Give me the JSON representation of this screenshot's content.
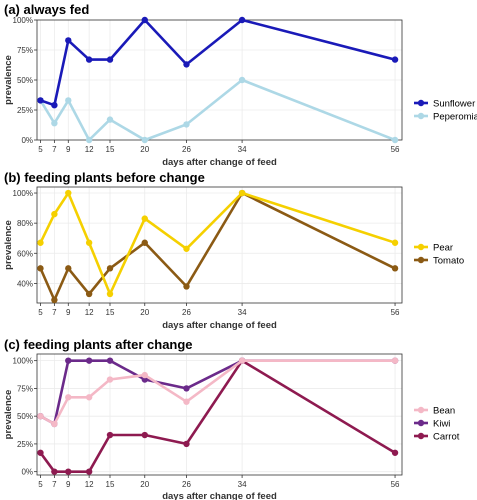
{
  "chart_data": [
    {
      "type": "line",
      "title": "(a) always fed",
      "xlabel": "days after change of feed",
      "ylabel": "prevalence",
      "x_ticks": [
        5,
        7,
        9,
        12,
        15,
        20,
        26,
        34,
        56
      ],
      "xlim": [
        4.5,
        57
      ],
      "ylim": [
        0,
        1
      ],
      "y_ticks": [
        0,
        0.25,
        0.5,
        0.75,
        1
      ],
      "y_tick_labels": [
        "0%",
        "25%",
        "50%",
        "75%",
        "100%"
      ],
      "grid": true,
      "legend_position": "right",
      "series": [
        {
          "name": "Sunflower",
          "color": "#1a1ab8",
          "points": [
            [
              5,
              0.33
            ],
            [
              7,
              0.29
            ],
            [
              9,
              0.83
            ],
            [
              12,
              0.67
            ],
            [
              15,
              0.67
            ],
            [
              20,
              1.0
            ],
            [
              26,
              0.63
            ],
            [
              34,
              1.0
            ],
            [
              56,
              0.67
            ]
          ]
        },
        {
          "name": "Peperomia",
          "color": "#add8e6",
          "points": [
            [
              5,
              0.33
            ],
            [
              7,
              0.14
            ],
            [
              9,
              0.33
            ],
            [
              12,
              0.0
            ],
            [
              15,
              0.17
            ],
            [
              20,
              0.0
            ],
            [
              26,
              0.13
            ],
            [
              34,
              0.5
            ],
            [
              56,
              0.0
            ]
          ]
        }
      ]
    },
    {
      "type": "line",
      "title": "(b) feeding plants before change",
      "xlabel": "days after change of feed",
      "ylabel": "prevalence",
      "x_ticks": [
        5,
        7,
        9,
        12,
        15,
        20,
        26,
        34,
        56
      ],
      "xlim": [
        4.5,
        57
      ],
      "ylim": [
        0.27,
        1.04
      ],
      "y_ticks": [
        0.4,
        0.6,
        0.8,
        1
      ],
      "y_tick_labels": [
        "40%",
        "60%",
        "80%",
        "100%"
      ],
      "grid": true,
      "legend_position": "right",
      "series": [
        {
          "name": "Pear",
          "color": "#f5d000",
          "points": [
            [
              5,
              0.67
            ],
            [
              7,
              0.86
            ],
            [
              9,
              1.0
            ],
            [
              12,
              0.67
            ],
            [
              15,
              0.33
            ],
            [
              20,
              0.83
            ],
            [
              26,
              0.63
            ],
            [
              34,
              1.0
            ],
            [
              56,
              0.67
            ]
          ]
        },
        {
          "name": "Tomato",
          "color": "#8b5a14",
          "points": [
            [
              5,
              0.5
            ],
            [
              7,
              0.29
            ],
            [
              9,
              0.5
            ],
            [
              12,
              0.33
            ],
            [
              15,
              0.5
            ],
            [
              20,
              0.67
            ],
            [
              26,
              0.38
            ],
            [
              34,
              1.0
            ],
            [
              56,
              0.5
            ]
          ]
        }
      ]
    },
    {
      "type": "line",
      "title": "(c) feeding plants after change",
      "xlabel": "days after change of feed",
      "ylabel": "prevalence",
      "x_ticks": [
        5,
        7,
        9,
        12,
        15,
        20,
        26,
        34,
        56
      ],
      "xlim": [
        4.5,
        57
      ],
      "ylim": [
        -0.03,
        1.06
      ],
      "y_ticks": [
        0,
        0.25,
        0.5,
        0.75,
        1
      ],
      "y_tick_labels": [
        "0%",
        "25%",
        "50%",
        "75%",
        "100%"
      ],
      "grid": true,
      "legend_position": "right",
      "series": [
        {
          "name": "Bean",
          "color": "#f4b8c6",
          "points": [
            [
              5,
              0.5
            ],
            [
              7,
              0.43
            ],
            [
              9,
              0.67
            ],
            [
              12,
              0.67
            ],
            [
              15,
              0.83
            ],
            [
              20,
              0.87
            ],
            [
              26,
              0.63
            ],
            [
              34,
              1.0
            ],
            [
              56,
              1.0
            ]
          ]
        },
        {
          "name": "Kiwi",
          "color": "#6b2a8a",
          "points": [
            [
              5,
              0.5
            ],
            [
              7,
              0.43
            ],
            [
              9,
              1.0
            ],
            [
              12,
              1.0
            ],
            [
              15,
              1.0
            ],
            [
              20,
              0.83
            ],
            [
              26,
              0.75
            ],
            [
              34,
              1.0
            ],
            [
              56,
              1.0
            ]
          ]
        },
        {
          "name": "Carrot",
          "color": "#8e1a50",
          "points": [
            [
              5,
              0.17
            ],
            [
              7,
              0.0
            ],
            [
              9,
              0.0
            ],
            [
              12,
              0.0
            ],
            [
              15,
              0.33
            ],
            [
              20,
              0.33
            ],
            [
              26,
              0.25
            ],
            [
              34,
              1.0
            ],
            [
              56,
              0.17
            ]
          ]
        }
      ]
    }
  ]
}
